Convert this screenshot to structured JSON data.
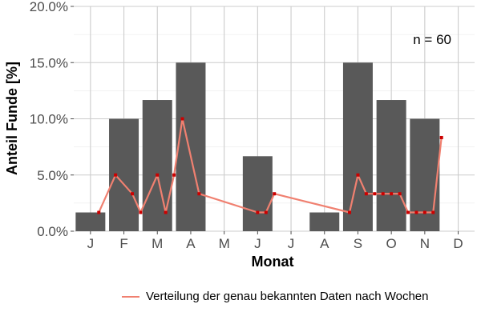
{
  "chart_data": {
    "type": "bar",
    "xlabel": "Monat",
    "ylabel": "Anteil Funde [%]",
    "annotation": "n = 60",
    "categories": [
      "J",
      "F",
      "M",
      "A",
      "M",
      "J",
      "J",
      "A",
      "S",
      "O",
      "N",
      "D"
    ],
    "values": [
      1.67,
      10.0,
      11.67,
      15.0,
      0,
      6.67,
      0,
      1.67,
      15.0,
      11.67,
      10.0,
      0
    ],
    "ylim": [
      0,
      20
    ],
    "yticks": [
      "0.0%",
      "5.0%",
      "10.0%",
      "15.0%",
      "20.0%"
    ],
    "ytick_values": [
      0,
      5,
      10,
      15,
      20
    ],
    "grid": true,
    "bar_color": "#595959",
    "line_color": "#f08070",
    "point_color": "#cc0000",
    "legend_position": "bottom",
    "line_series": {
      "name": "Verteilung der genau bekannten Daten nach Wochen",
      "points": [
        {
          "month": 1.25,
          "value": 1.67
        },
        {
          "month": 1.75,
          "value": 5.0
        },
        {
          "month": 2.25,
          "value": 3.33
        },
        {
          "month": 2.5,
          "value": 1.67
        },
        {
          "month": 3.0,
          "value": 5.0
        },
        {
          "month": 3.25,
          "value": 1.67
        },
        {
          "month": 3.5,
          "value": 5.0
        },
        {
          "month": 3.75,
          "value": 10.0
        },
        {
          "month": 4.25,
          "value": 3.33
        },
        {
          "month": 6.0,
          "value": 1.67
        },
        {
          "month": 6.25,
          "value": 1.67
        },
        {
          "month": 6.5,
          "value": 3.33
        },
        {
          "month": 8.75,
          "value": 1.67
        },
        {
          "month": 9.0,
          "value": 5.0
        },
        {
          "month": 9.25,
          "value": 3.33
        },
        {
          "month": 9.5,
          "value": 3.33
        },
        {
          "month": 9.75,
          "value": 3.33
        },
        {
          "month": 10.0,
          "value": 3.33
        },
        {
          "month": 10.25,
          "value": 3.33
        },
        {
          "month": 10.5,
          "value": 1.67
        },
        {
          "month": 10.75,
          "value": 1.67
        },
        {
          "month": 11.0,
          "value": 1.67
        },
        {
          "month": 11.25,
          "value": 1.67
        },
        {
          "month": 11.5,
          "value": 8.33
        }
      ]
    }
  }
}
